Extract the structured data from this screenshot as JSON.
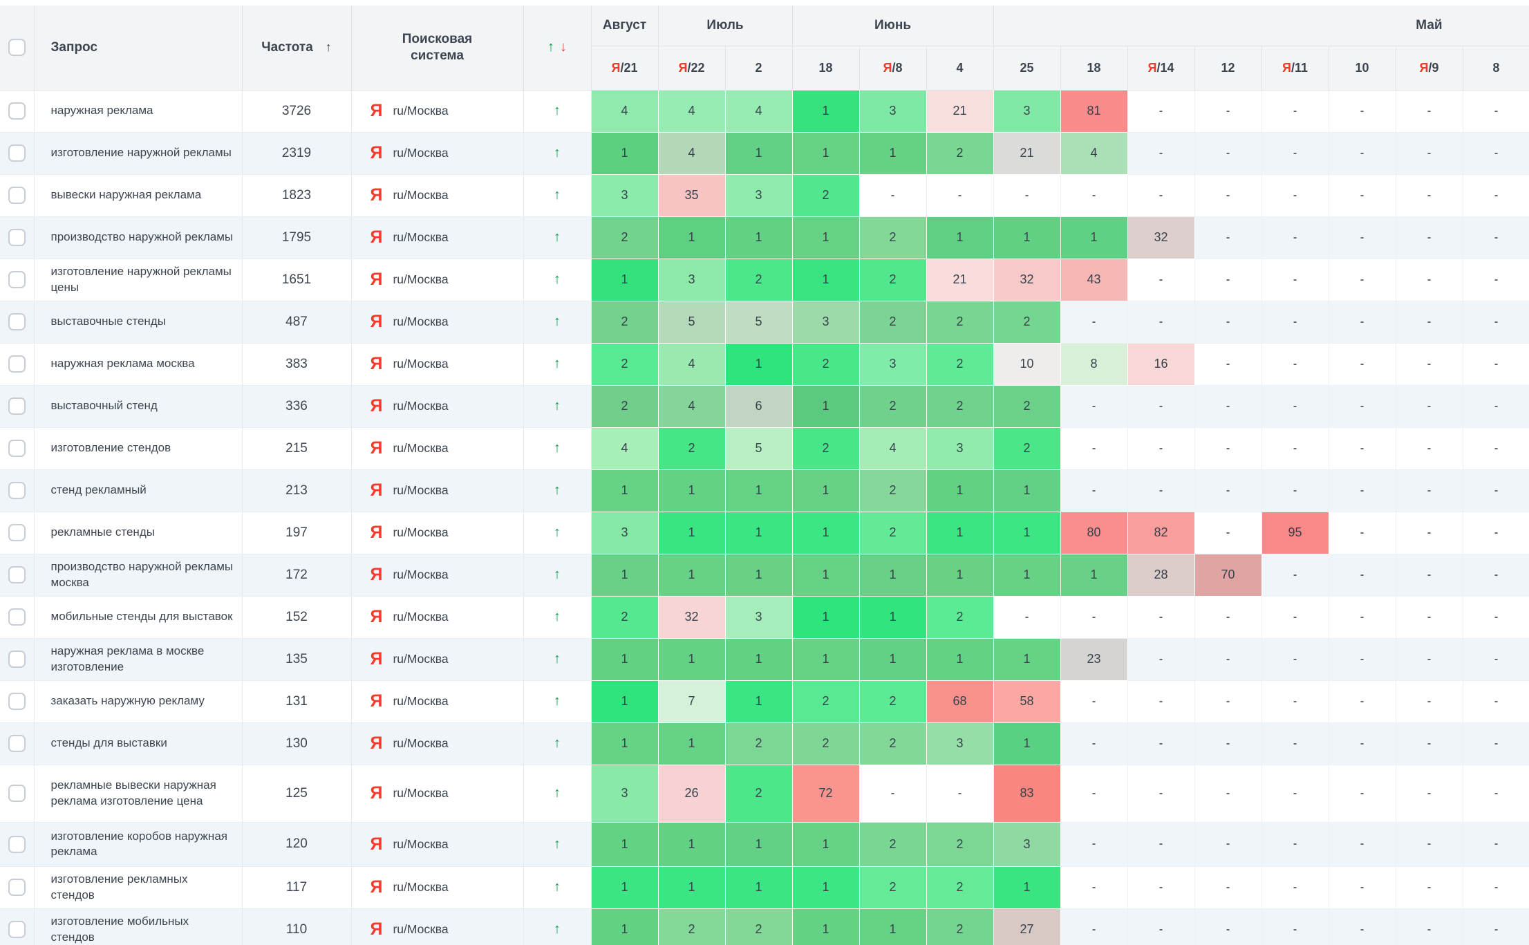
{
  "header": {
    "query_label": "Запрос",
    "frequency_label": "Частота",
    "frequency_sort_icon": "↑",
    "search_engine_label": "Поисковая система",
    "trend_up_icon": "↑",
    "trend_down_icon": "↓",
    "month_groups": [
      {
        "label": "Август",
        "span": 1,
        "align": "center"
      },
      {
        "label": "Июль",
        "span": 2,
        "align": "center"
      },
      {
        "label": "Июнь",
        "span": 3,
        "align": "center"
      },
      {
        "label": "Май",
        "span": 8,
        "align": "right"
      }
    ],
    "date_columns": [
      {
        "label": "21",
        "yandex_update": true
      },
      {
        "label": "22",
        "yandex_update": true
      },
      {
        "label": "2",
        "yandex_update": false
      },
      {
        "label": "18",
        "yandex_update": false
      },
      {
        "label": "8",
        "yandex_update": true
      },
      {
        "label": "4",
        "yandex_update": false
      },
      {
        "label": "25",
        "yandex_update": false
      },
      {
        "label": "18",
        "yandex_update": false
      },
      {
        "label": "14",
        "yandex_update": true
      },
      {
        "label": "12",
        "yandex_update": false
      },
      {
        "label": "11",
        "yandex_update": true
      },
      {
        "label": "10",
        "yandex_update": false
      },
      {
        "label": "9",
        "yandex_update": true
      },
      {
        "label": "8",
        "yandex_update": false
      }
    ]
  },
  "icons": {
    "yandex_glyph": "Я",
    "trend_up": "↑",
    "dash": "-"
  },
  "colors": {
    "yandex_red": "#f43b29",
    "trend_green": "#0ca04d",
    "trend_down_red": "#e8402e"
  },
  "search_engine_value": "ru/Москва",
  "rows": [
    {
      "query": "наружная реклама",
      "frequency": "3726",
      "cells": [
        [
          "4",
          "#90eaae"
        ],
        [
          "4",
          "#97ecb3"
        ],
        [
          "4",
          "#97ecb3"
        ],
        [
          "1",
          "#36e27e"
        ],
        [
          "3",
          "#7ee9a5"
        ],
        [
          "21",
          "#f9dede"
        ],
        [
          "3",
          "#80e9a6"
        ],
        [
          "81",
          "#f98b8b"
        ],
        [
          "-",
          ""
        ],
        [
          "-",
          ""
        ],
        [
          "-",
          ""
        ],
        [
          "-",
          ""
        ],
        [
          "-",
          ""
        ],
        [
          "-",
          ""
        ]
      ]
    },
    {
      "query": "изготовление наружной рекламы",
      "frequency": "2319",
      "cells": [
        [
          "1",
          "#5ccf80"
        ],
        [
          "4",
          "#b4d6b9"
        ],
        [
          "1",
          "#63d185"
        ],
        [
          "1",
          "#66d286"
        ],
        [
          "1",
          "#64d185"
        ],
        [
          "2",
          "#79d693"
        ],
        [
          "21",
          "#dbdbd9"
        ],
        [
          "4",
          "#abdfb6"
        ],
        [
          "-",
          ""
        ],
        [
          "-",
          ""
        ],
        [
          "-",
          ""
        ],
        [
          "-",
          ""
        ],
        [
          "-",
          ""
        ],
        [
          "-",
          ""
        ]
      ]
    },
    {
      "query": "вывески наружная реклама",
      "frequency": "1823",
      "cells": [
        [
          "3",
          "#8ceaab"
        ],
        [
          "35",
          "#f7c3c3"
        ],
        [
          "3",
          "#90ebae"
        ],
        [
          "2",
          "#52e78e"
        ],
        [
          "-",
          ""
        ],
        [
          "-",
          ""
        ],
        [
          "-",
          ""
        ],
        [
          "-",
          ""
        ],
        [
          "-",
          ""
        ],
        [
          "-",
          ""
        ],
        [
          "-",
          ""
        ],
        [
          "-",
          ""
        ],
        [
          "-",
          ""
        ],
        [
          "-",
          ""
        ]
      ]
    },
    {
      "query": "производство наружной рекламы",
      "frequency": "1795",
      "cells": [
        [
          "2",
          "#72d28e"
        ],
        [
          "1",
          "#5ed082"
        ],
        [
          "1",
          "#62d184"
        ],
        [
          "1",
          "#65d286"
        ],
        [
          "2",
          "#83d898"
        ],
        [
          "1",
          "#5fd083"
        ],
        [
          "1",
          "#60d083"
        ],
        [
          "1",
          "#5ed184"
        ],
        [
          "32",
          "#ddcfce"
        ],
        [
          "-",
          ""
        ],
        [
          "-",
          ""
        ],
        [
          "-",
          ""
        ],
        [
          "-",
          ""
        ],
        [
          "-",
          ""
        ]
      ]
    },
    {
      "query": "изготовление наружной рекламы цены",
      "frequency": "1651",
      "cells": [
        [
          "1",
          "#33e27c"
        ],
        [
          "3",
          "#8deaab"
        ],
        [
          "2",
          "#4ce78b"
        ],
        [
          "1",
          "#39e380"
        ],
        [
          "2",
          "#50e78d"
        ],
        [
          "21",
          "#fadcdc"
        ],
        [
          "32",
          "#f8c9c9"
        ],
        [
          "43",
          "#f7b7b5"
        ],
        [
          "-",
          ""
        ],
        [
          "-",
          ""
        ],
        [
          "-",
          ""
        ],
        [
          "-",
          ""
        ],
        [
          "-",
          ""
        ],
        [
          "-",
          ""
        ]
      ]
    },
    {
      "query": "выставочные стенды",
      "frequency": "487",
      "cells": [
        [
          "2",
          "#75d18e"
        ],
        [
          "5",
          "#b5d9bb"
        ],
        [
          "5",
          "#c0dcc3"
        ],
        [
          "3",
          "#9cdaa9"
        ],
        [
          "2",
          "#7cd494"
        ],
        [
          "2",
          "#79d592"
        ],
        [
          "2",
          "#75d691"
        ],
        [
          "-",
          ""
        ],
        [
          "-",
          ""
        ],
        [
          "-",
          ""
        ],
        [
          "-",
          ""
        ],
        [
          "-",
          ""
        ],
        [
          "-",
          ""
        ],
        [
          "-",
          ""
        ]
      ]
    },
    {
      "query": "наружная реклама москва",
      "frequency": "383",
      "cells": [
        [
          "2",
          "#57ea92"
        ],
        [
          "4",
          "#9ae9af"
        ],
        [
          "1",
          "#2ee47c"
        ],
        [
          "2",
          "#48e789"
        ],
        [
          "3",
          "#80eca9"
        ],
        [
          "2",
          "#60ea95"
        ],
        [
          "10",
          "#efecec"
        ],
        [
          "8",
          "#d8efd8"
        ],
        [
          "16",
          "#f8d7d7"
        ],
        [
          "-",
          ""
        ],
        [
          "-",
          ""
        ],
        [
          "-",
          ""
        ],
        [
          "-",
          ""
        ],
        [
          "-",
          ""
        ]
      ]
    },
    {
      "query": "выставочный стенд",
      "frequency": "336",
      "cells": [
        [
          "2",
          "#71cd8a"
        ],
        [
          "4",
          "#85d499"
        ],
        [
          "6",
          "#c2d5c3"
        ],
        [
          "1",
          "#5cca7e"
        ],
        [
          "2",
          "#6fd18b"
        ],
        [
          "2",
          "#70d28c"
        ],
        [
          "2",
          "#6bd189"
        ],
        [
          "-",
          ""
        ],
        [
          "-",
          ""
        ],
        [
          "-",
          ""
        ],
        [
          "-",
          ""
        ],
        [
          "-",
          ""
        ],
        [
          "-",
          ""
        ],
        [
          "-",
          ""
        ]
      ]
    },
    {
      "query": "изготовление стендов",
      "frequency": "215",
      "cells": [
        [
          "4",
          "#a8eeb9"
        ],
        [
          "2",
          "#45e686"
        ],
        [
          "5",
          "#b8f0c3"
        ],
        [
          "2",
          "#49e688"
        ],
        [
          "4",
          "#a4edb7"
        ],
        [
          "3",
          "#90ebad"
        ],
        [
          "2",
          "#4ae687"
        ],
        [
          "-",
          ""
        ],
        [
          "-",
          ""
        ],
        [
          "-",
          ""
        ],
        [
          "-",
          ""
        ],
        [
          "-",
          ""
        ],
        [
          "-",
          ""
        ],
        [
          "-",
          ""
        ]
      ]
    },
    {
      "query": "стенд рекламный",
      "frequency": "213",
      "cells": [
        [
          "1",
          "#66d286"
        ],
        [
          "1",
          "#64d285"
        ],
        [
          "1",
          "#65d285"
        ],
        [
          "1",
          "#67d286"
        ],
        [
          "2",
          "#85d899"
        ],
        [
          "1",
          "#62d184"
        ],
        [
          "1",
          "#63d185"
        ],
        [
          "-",
          ""
        ],
        [
          "-",
          ""
        ],
        [
          "-",
          ""
        ],
        [
          "-",
          ""
        ],
        [
          "-",
          ""
        ],
        [
          "-",
          ""
        ],
        [
          "-",
          ""
        ]
      ]
    },
    {
      "query": "рекламные стенды",
      "frequency": "197",
      "cells": [
        [
          "3",
          "#85e9a5"
        ],
        [
          "1",
          "#39e582"
        ],
        [
          "1",
          "#3ce583"
        ],
        [
          "1",
          "#3de684"
        ],
        [
          "2",
          "#63ea96"
        ],
        [
          "1",
          "#3be583"
        ],
        [
          "1",
          "#3de684"
        ],
        [
          "80",
          "#f98e8e"
        ],
        [
          "82",
          "#fa9d9d"
        ],
        [
          "-",
          ""
        ],
        [
          "95",
          "#fa8888"
        ],
        [
          "-",
          ""
        ],
        [
          "-",
          ""
        ],
        [
          "-",
          ""
        ]
      ]
    },
    {
      "query": "производство наружной рекламы москва",
      "frequency": "172",
      "cells": [
        [
          "1",
          "#69d187"
        ],
        [
          "1",
          "#67d286"
        ],
        [
          "1",
          "#68d186"
        ],
        [
          "1",
          "#66d286"
        ],
        [
          "1",
          "#69d187"
        ],
        [
          "1",
          "#68d186"
        ],
        [
          "1",
          "#67d286"
        ],
        [
          "1",
          "#69d187"
        ],
        [
          "28",
          "#dccdca"
        ],
        [
          "70",
          "#e0a5a3"
        ],
        [
          "-",
          ""
        ],
        [
          "-",
          ""
        ],
        [
          "-",
          ""
        ],
        [
          "-",
          ""
        ]
      ]
    },
    {
      "query": "мобильные стенды для выставок",
      "frequency": "152",
      "cells": [
        [
          "2",
          "#55e891"
        ],
        [
          "32",
          "#f8d5d5"
        ],
        [
          "3",
          "#a5eebb"
        ],
        [
          "1",
          "#2ee47d"
        ],
        [
          "1",
          "#32e47e"
        ],
        [
          "2",
          "#5dea94"
        ],
        [
          "-",
          ""
        ],
        [
          "-",
          ""
        ],
        [
          "-",
          ""
        ],
        [
          "-",
          ""
        ],
        [
          "-",
          ""
        ],
        [
          "-",
          ""
        ],
        [
          "-",
          ""
        ],
        [
          "-",
          ""
        ]
      ]
    },
    {
      "query": "наружная реклама в москве изготовление",
      "frequency": "135",
      "cells": [
        [
          "1",
          "#63d184"
        ],
        [
          "1",
          "#64d285"
        ],
        [
          "1",
          "#62d184"
        ],
        [
          "1",
          "#65d285"
        ],
        [
          "1",
          "#63d185"
        ],
        [
          "1",
          "#64d285"
        ],
        [
          "1",
          "#66d286"
        ],
        [
          "23",
          "#d5d4d2"
        ],
        [
          "-",
          ""
        ],
        [
          "-",
          ""
        ],
        [
          "-",
          ""
        ],
        [
          "-",
          ""
        ],
        [
          "-",
          ""
        ],
        [
          "-",
          ""
        ]
      ]
    },
    {
      "query": "заказать наружную рекламу",
      "frequency": "131",
      "cells": [
        [
          "1",
          "#2fe47c"
        ],
        [
          "7",
          "#d3f2d9"
        ],
        [
          "1",
          "#3ce584"
        ],
        [
          "2",
          "#58e992"
        ],
        [
          "2",
          "#5dea94"
        ],
        [
          "68",
          "#f8918c"
        ],
        [
          "58",
          "#fba8a2"
        ],
        [
          "-",
          ""
        ],
        [
          "-",
          ""
        ],
        [
          "-",
          ""
        ],
        [
          "-",
          ""
        ],
        [
          "-",
          ""
        ],
        [
          "-",
          ""
        ],
        [
          "-",
          ""
        ]
      ]
    },
    {
      "query": "стенды для выставки",
      "frequency": "130",
      "cells": [
        [
          "1",
          "#65d285"
        ],
        [
          "1",
          "#66d286"
        ],
        [
          "2",
          "#7cd795"
        ],
        [
          "2",
          "#7ed795"
        ],
        [
          "2",
          "#82d897"
        ],
        [
          "3",
          "#97dda8"
        ],
        [
          "1",
          "#5ad083"
        ],
        [
          "-",
          ""
        ],
        [
          "-",
          ""
        ],
        [
          "-",
          ""
        ],
        [
          "-",
          ""
        ],
        [
          "-",
          ""
        ],
        [
          "-",
          ""
        ],
        [
          "-",
          ""
        ]
      ]
    },
    {
      "query": "рекламные вывески наружная реклама изготовление цена",
      "frequency": "125",
      "h": 83,
      "cells": [
        [
          "3",
          "#8ae9a8"
        ],
        [
          "26",
          "#f8d2d2"
        ],
        [
          "2",
          "#4ce78a"
        ],
        [
          "72",
          "#fa948e"
        ],
        [
          "-",
          ""
        ],
        [
          "-",
          ""
        ],
        [
          "83",
          "#f9867f"
        ],
        [
          "-",
          ""
        ],
        [
          "-",
          ""
        ],
        [
          "-",
          ""
        ],
        [
          "-",
          ""
        ],
        [
          "-",
          ""
        ],
        [
          "-",
          ""
        ],
        [
          "-",
          ""
        ]
      ]
    },
    {
      "query": "изготовление коробов наружная реклама",
      "frequency": "120",
      "h": 64,
      "cells": [
        [
          "1",
          "#64d285"
        ],
        [
          "1",
          "#62d184"
        ],
        [
          "1",
          "#63d185"
        ],
        [
          "1",
          "#65d285"
        ],
        [
          "2",
          "#7ad693"
        ],
        [
          "2",
          "#7cd694"
        ],
        [
          "3",
          "#90d9a3"
        ],
        [
          "-",
          ""
        ],
        [
          "-",
          ""
        ],
        [
          "-",
          ""
        ],
        [
          "-",
          ""
        ],
        [
          "-",
          ""
        ],
        [
          "-",
          ""
        ],
        [
          "-",
          ""
        ]
      ]
    },
    {
      "query": "изготовление рекламных стендов",
      "frequency": "117",
      "cells": [
        [
          "1",
          "#3be583"
        ],
        [
          "1",
          "#3ae583"
        ],
        [
          "1",
          "#3ce583"
        ],
        [
          "1",
          "#3de684"
        ],
        [
          "2",
          "#63eb97"
        ],
        [
          "2",
          "#65eb98"
        ],
        [
          "1",
          "#37e581"
        ],
        [
          "-",
          ""
        ],
        [
          "-",
          ""
        ],
        [
          "-",
          ""
        ],
        [
          "-",
          ""
        ],
        [
          "-",
          ""
        ],
        [
          "-",
          ""
        ],
        [
          "-",
          ""
        ]
      ]
    },
    {
      "query": "изготовление мобильных стендов",
      "frequency": "110",
      "cells": [
        [
          "1",
          "#62d184"
        ],
        [
          "2",
          "#84d898"
        ],
        [
          "2",
          "#83d897"
        ],
        [
          "1",
          "#64d285"
        ],
        [
          "1",
          "#65d285"
        ],
        [
          "2",
          "#74d590"
        ],
        [
          "27",
          "#d9c9c5"
        ],
        [
          "-",
          ""
        ],
        [
          "-",
          ""
        ],
        [
          "-",
          ""
        ],
        [
          "-",
          ""
        ],
        [
          "-",
          ""
        ],
        [
          "-",
          ""
        ],
        [
          "-",
          ""
        ]
      ]
    }
  ]
}
